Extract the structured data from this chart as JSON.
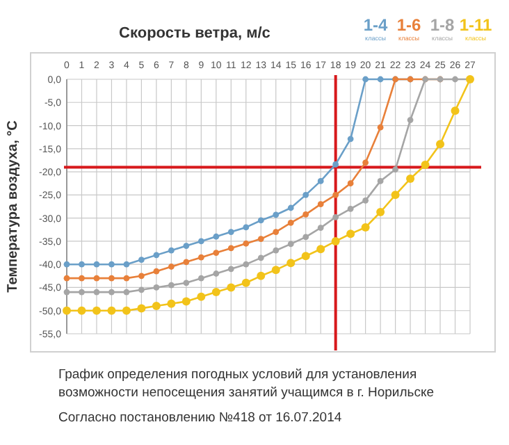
{
  "chart_data": {
    "type": "line",
    "xlabel": "Скорость ветра, м/с",
    "ylabel": "Температура воздуха, °С",
    "x": [
      0,
      1,
      2,
      3,
      4,
      5,
      6,
      7,
      8,
      9,
      10,
      11,
      12,
      13,
      14,
      15,
      16,
      17,
      18,
      19,
      20,
      21,
      22,
      23,
      24,
      25,
      26,
      27
    ],
    "series": [
      {
        "name": "1-4$_{классы}$",
        "color": "#6a9fc8",
        "values": [
          -40,
          -40,
          -40,
          -40,
          -40,
          -39,
          -38,
          -37,
          -36,
          -35,
          -34,
          -33,
          -32,
          -30.5,
          -29.3,
          -27.8,
          -25,
          -22,
          -18.4,
          -12.9,
          0,
          0,
          0,
          0,
          null,
          null,
          null,
          null
        ]
      },
      {
        "name": "1-6$_{классы}$",
        "color": "#e8803a",
        "values": [
          -43,
          -43,
          -43,
          -43,
          -43,
          -42.5,
          -41.5,
          -40.5,
          -39.5,
          -38.5,
          -37.5,
          -36.5,
          -35.5,
          -34.5,
          -33,
          -31,
          -29.2,
          -27,
          -25,
          -22.5,
          -18,
          -10.4,
          0,
          0,
          0,
          0,
          null,
          null
        ]
      },
      {
        "name": "1-8$_{классы}$",
        "color": "#a5a5a5",
        "values": [
          -46,
          -46,
          -46,
          -46,
          -46,
          -45.5,
          -45,
          -44.5,
          -44,
          -43,
          -42,
          -41,
          -40,
          -38.6,
          -37,
          -35.6,
          -34.1,
          -32.1,
          -29.8,
          -28,
          -26.2,
          -22,
          -19.5,
          -8.8,
          0,
          0,
          0,
          0
        ]
      },
      {
        "name": "1-11$_{классы}$",
        "color": "#f2c31a",
        "values": [
          -50,
          -50,
          -50,
          -50,
          -50,
          -49.5,
          -49,
          -48.5,
          -48,
          -47,
          -46,
          -45,
          -44,
          -42.5,
          -41.2,
          -39.7,
          -38.2,
          -36.7,
          -35,
          -33.4,
          -32,
          -28.7,
          -25,
          -21.5,
          -18.5,
          -14,
          -6.8,
          0
        ]
      }
    ],
    "xlim": [
      0,
      27
    ],
    "xticks": [
      0,
      1,
      2,
      3,
      4,
      5,
      6,
      7,
      8,
      9,
      10,
      11,
      12,
      13,
      14,
      15,
      16,
      17,
      18,
      19,
      20,
      21,
      22,
      23,
      24,
      25,
      26,
      27
    ],
    "ylim": [
      -55,
      0
    ],
    "yticks": [
      {
        "value": 0,
        "label": "0,0"
      },
      {
        "value": -5,
        "label": "-5,0"
      },
      {
        "value": -10,
        "label": "-10,0"
      },
      {
        "value": -15,
        "label": "-15,0"
      },
      {
        "value": -20,
        "label": "-20,0"
      },
      {
        "value": -25,
        "label": "-25,0"
      },
      {
        "value": -30,
        "label": "-30,0"
      },
      {
        "value": -35,
        "label": "-35,0"
      },
      {
        "value": -40,
        "label": "-40,0"
      },
      {
        "value": -45,
        "label": "-45,0"
      },
      {
        "value": -50,
        "label": "-50,0"
      },
      {
        "value": -55,
        "label": "-55,0"
      }
    ],
    "ref_lines": [
      {
        "axis": "x",
        "value": 18,
        "color": "#d7191c"
      },
      {
        "axis": "y",
        "value": -19,
        "color": "#d7191c"
      }
    ],
    "grid": true,
    "marker": "circle",
    "line_style": "solid",
    "legend": "top right",
    "annotations": [
      "График определения погодных условий для установления возможности непосещения занятий учащимся в г. Норильске",
      "Согласно постановлению №418 от 16.07.2014"
    ]
  }
}
